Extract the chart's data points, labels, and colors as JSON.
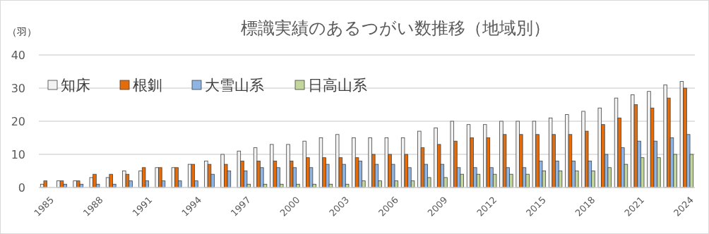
{
  "chart_data": {
    "type": "bar",
    "title": "標識実績のあるつがい数推移（地域別）",
    "ylabel": "（羽）",
    "categories": [
      "1985",
      null,
      null,
      "1988",
      null,
      null,
      "1991",
      null,
      null,
      "1994",
      null,
      null,
      "1997",
      null,
      null,
      "2000",
      null,
      null,
      "2003",
      null,
      null,
      "2006",
      null,
      null,
      "2009",
      null,
      null,
      "2012",
      null,
      null,
      "2015",
      null,
      null,
      "2018",
      null,
      null,
      "2021",
      null,
      null,
      "2024"
    ],
    "series": [
      {
        "name": "知床",
        "color": "#f2f2f2",
        "values": [
          1,
          2,
          2,
          3,
          3,
          5,
          5,
          6,
          6,
          7,
          8,
          10,
          11,
          12,
          13,
          13,
          14,
          15,
          16,
          15,
          15,
          15,
          15,
          17,
          18,
          20,
          19,
          19,
          20,
          20,
          20,
          21,
          22,
          23,
          24,
          27,
          28,
          29,
          31,
          32
        ]
      },
      {
        "name": "根釧",
        "color": "#e46c0a",
        "values": [
          2,
          2,
          2,
          4,
          4,
          4,
          6,
          6,
          6,
          7,
          7,
          7,
          8,
          8,
          8,
          8,
          9,
          9,
          9,
          9,
          10,
          10,
          10,
          12,
          13,
          14,
          15,
          15,
          16,
          16,
          16,
          16,
          16,
          17,
          19,
          21,
          25,
          24,
          27,
          30
        ]
      },
      {
        "name": "大雪山系",
        "color": "#8db4e2",
        "values": [
          0,
          1,
          1,
          1,
          1,
          2,
          2,
          2,
          2,
          2,
          4,
          5,
          5,
          6,
          6,
          6,
          6,
          7,
          7,
          8,
          7,
          7,
          6,
          7,
          7,
          6,
          6,
          6,
          6,
          6,
          8,
          8,
          8,
          8,
          10,
          12,
          14,
          14,
          15,
          16
        ]
      },
      {
        "name": "日高山系",
        "color": "#c3d69b",
        "values": [
          0,
          0,
          0,
          0,
          0,
          0,
          0,
          0,
          0,
          0,
          0,
          0,
          1,
          1,
          1,
          1,
          1,
          1,
          1,
          2,
          2,
          2,
          2,
          3,
          3,
          4,
          4,
          4,
          4,
          4,
          5,
          5,
          5,
          5,
          6,
          7,
          9,
          9,
          10,
          10
        ]
      }
    ],
    "ylim": [
      0,
      40
    ],
    "yticks": [
      0,
      10,
      20,
      30,
      40
    ],
    "grid": "y",
    "legend": "top left"
  }
}
